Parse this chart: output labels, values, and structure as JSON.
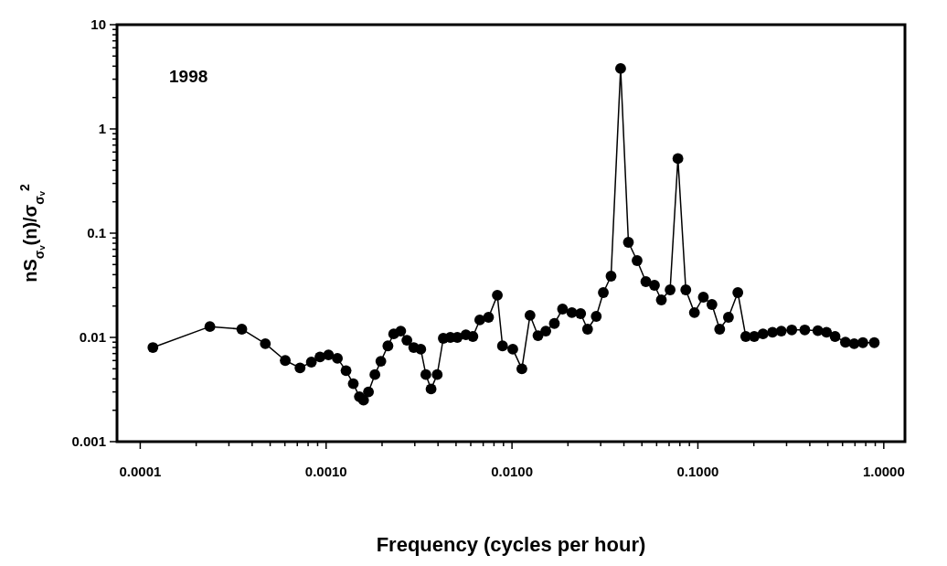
{
  "chart_data": {
    "type": "line",
    "xlabel": "Frequency  (cycles per hour)",
    "ylabel": "nS$_{σᵥ}$(n)/σ$_{σᵥ}$$^{2}$",
    "annotations": [
      "1998"
    ],
    "log": "xy",
    "grid": false,
    "marker": "circle",
    "line_style": "solid",
    "xlim": [
      7.5e-05,
      1.3
    ],
    "ylim": [
      0.001,
      10
    ],
    "xticks": [
      {
        "value": 0.0001,
        "label": "0.0001"
      },
      {
        "value": 0.0002,
        "label": null
      },
      {
        "value": 0.0003,
        "label": null
      },
      {
        "value": 0.0004,
        "label": null
      },
      {
        "value": 0.0005,
        "label": null
      },
      {
        "value": 0.0006,
        "label": null
      },
      {
        "value": 0.0007,
        "label": null
      },
      {
        "value": 0.0008,
        "label": null
      },
      {
        "value": 0.0009,
        "label": null
      },
      {
        "value": 0.001,
        "label": "0.0010"
      },
      {
        "value": 0.002,
        "label": null
      },
      {
        "value": 0.003,
        "label": null
      },
      {
        "value": 0.004,
        "label": null
      },
      {
        "value": 0.005,
        "label": null
      },
      {
        "value": 0.006,
        "label": null
      },
      {
        "value": 0.007,
        "label": null
      },
      {
        "value": 0.008,
        "label": null
      },
      {
        "value": 0.009,
        "label": null
      },
      {
        "value": 0.01,
        "label": "0.0100"
      },
      {
        "value": 0.02,
        "label": null
      },
      {
        "value": 0.03,
        "label": null
      },
      {
        "value": 0.04,
        "label": null
      },
      {
        "value": 0.05,
        "label": null
      },
      {
        "value": 0.06,
        "label": null
      },
      {
        "value": 0.07,
        "label": null
      },
      {
        "value": 0.08,
        "label": null
      },
      {
        "value": 0.09,
        "label": null
      },
      {
        "value": 0.1,
        "label": "0.1000"
      },
      {
        "value": 0.2,
        "label": null
      },
      {
        "value": 0.3,
        "label": null
      },
      {
        "value": 0.4,
        "label": null
      },
      {
        "value": 0.5,
        "label": null
      },
      {
        "value": 0.6,
        "label": null
      },
      {
        "value": 0.7,
        "label": null
      },
      {
        "value": 0.8,
        "label": null
      },
      {
        "value": 0.9,
        "label": null
      },
      {
        "value": 1,
        "label": "1.0000"
      }
    ],
    "yticks": [
      0.001,
      {
        "value": 0.002,
        "label": null
      },
      {
        "value": 0.003,
        "label": null
      },
      {
        "value": 0.004,
        "label": null
      },
      {
        "value": 0.005,
        "label": null
      },
      {
        "value": 0.006,
        "label": null
      },
      {
        "value": 0.007,
        "label": null
      },
      {
        "value": 0.008,
        "label": null
      },
      {
        "value": 0.009,
        "label": null
      },
      0.01,
      {
        "value": 0.02,
        "label": null
      },
      {
        "value": 0.03,
        "label": null
      },
      {
        "value": 0.04,
        "label": null
      },
      {
        "value": 0.05,
        "label": null
      },
      {
        "value": 0.06,
        "label": null
      },
      {
        "value": 0.07,
        "label": null
      },
      {
        "value": 0.08,
        "label": null
      },
      {
        "value": 0.09,
        "label": null
      },
      0.1,
      {
        "value": 0.2,
        "label": null
      },
      {
        "value": 0.3,
        "label": null
      },
      {
        "value": 0.4,
        "label": null
      },
      {
        "value": 0.5,
        "label": null
      },
      {
        "value": 0.6,
        "label": null
      },
      {
        "value": 0.7,
        "label": null
      },
      {
        "value": 0.8,
        "label": null
      },
      {
        "value": 0.9,
        "label": null
      },
      1,
      {
        "value": 2,
        "label": null
      },
      {
        "value": 3,
        "label": null
      },
      {
        "value": 4,
        "label": null
      },
      {
        "value": 5,
        "label": null
      },
      {
        "value": 6,
        "label": null
      },
      {
        "value": 7,
        "label": null
      },
      {
        "value": 8,
        "label": null
      },
      {
        "value": 9,
        "label": null
      },
      10
    ],
    "series": [
      {
        "color": "#000000",
        "x": [
          0.000117,
          0.000237,
          0.000352,
          0.000471,
          0.000603,
          0.000724,
          0.000833,
          0.000927,
          0.00103,
          0.00115,
          0.00128,
          0.0014,
          0.00151,
          0.00159,
          0.00169,
          0.00183,
          0.00197,
          0.00215,
          0.00231,
          0.00252,
          0.00272,
          0.00296,
          0.00323,
          0.00344,
          0.00367,
          0.00396,
          0.00427,
          0.00466,
          0.00508,
          0.00565,
          0.00616,
          0.00671,
          0.00748,
          0.00834,
          0.00889,
          0.0101,
          0.0113,
          0.0125,
          0.0138,
          0.0152,
          0.0169,
          0.0187,
          0.021,
          0.0234,
          0.0255,
          0.0284,
          0.031,
          0.0341,
          0.0384,
          0.0423,
          0.0471,
          0.0525,
          0.0584,
          0.0636,
          0.0709,
          0.0781,
          0.0861,
          0.0958,
          0.107,
          0.119,
          0.131,
          0.146,
          0.164,
          0.181,
          0.201,
          0.224,
          0.252,
          0.281,
          0.32,
          0.376,
          0.442,
          0.492,
          0.547,
          0.622,
          0.693,
          0.772,
          0.889
        ],
        "values": [
          0.008,
          0.0127,
          0.012,
          0.0087,
          0.006,
          0.0051,
          0.0058,
          0.0065,
          0.0068,
          0.0063,
          0.0048,
          0.0036,
          0.0027,
          0.0025,
          0.003,
          0.0044,
          0.0059,
          0.0083,
          0.0108,
          0.0115,
          0.0094,
          0.008,
          0.0077,
          0.0044,
          0.0032,
          0.0044,
          0.0098,
          0.01,
          0.01,
          0.0106,
          0.0102,
          0.0147,
          0.0156,
          0.0254,
          0.0083,
          0.0077,
          0.005,
          0.0163,
          0.0104,
          0.0115,
          0.0136,
          0.0187,
          0.0173,
          0.0169,
          0.012,
          0.0159,
          0.0269,
          0.0387,
          3.8,
          0.0817,
          0.0546,
          0.0343,
          0.0316,
          0.0229,
          0.0286,
          0.52,
          0.0286,
          0.0173,
          0.0243,
          0.0207,
          0.012,
          0.0156,
          0.0269,
          0.0102,
          0.0102,
          0.0108,
          0.0112,
          0.0115,
          0.0118,
          0.0118,
          0.0116,
          0.0112,
          0.0102,
          0.009,
          0.0087,
          0.0089,
          0.0089
        ]
      }
    ]
  }
}
